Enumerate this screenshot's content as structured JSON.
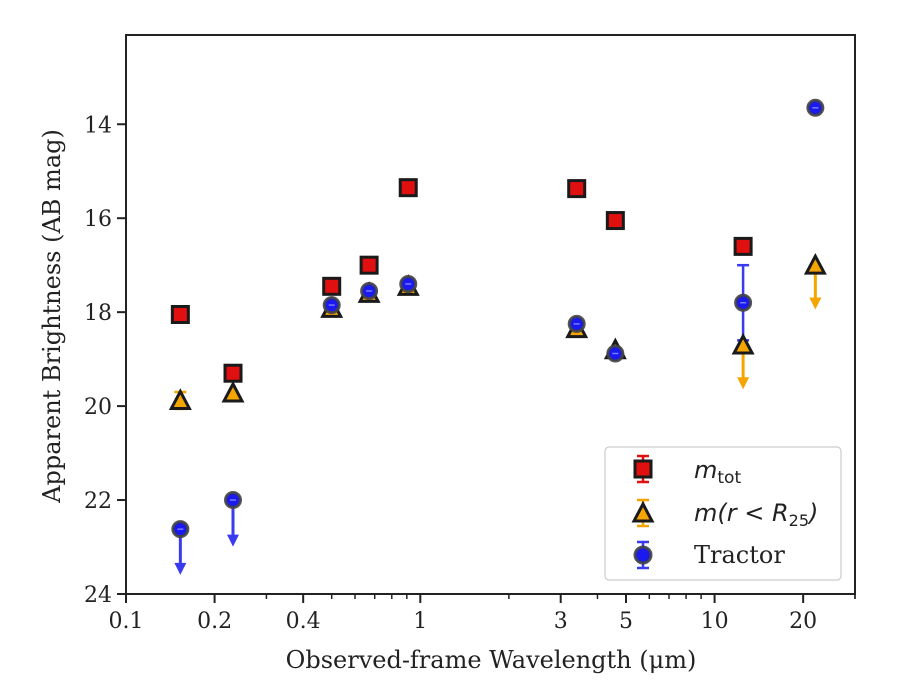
{
  "chart_data": {
    "type": "scatter",
    "xlabel": "Observed-frame Wavelength (μm)",
    "ylabel": "Apparent Brightness (AB mag)",
    "xscale": "log",
    "xlim": [
      0.1,
      30
    ],
    "ylim": [
      24,
      12.1
    ],
    "y_inverted": true,
    "x_ticks": [
      {
        "value": 0.1,
        "label": "0.1"
      },
      {
        "value": 0.2,
        "label": "0.2"
      },
      {
        "value": 0.4,
        "label": "0.4"
      },
      {
        "value": 1,
        "label": "1"
      },
      {
        "value": 3,
        "label": "3"
      },
      {
        "value": 5,
        "label": "5"
      },
      {
        "value": 10,
        "label": "10"
      },
      {
        "value": 20,
        "label": "20"
      }
    ],
    "y_ticks": [
      {
        "value": 14,
        "label": "14"
      },
      {
        "value": 16,
        "label": "16"
      },
      {
        "value": 18,
        "label": "18"
      },
      {
        "value": 20,
        "label": "20"
      },
      {
        "value": 22,
        "label": "22"
      },
      {
        "value": 24,
        "label": "24"
      }
    ],
    "grid": false,
    "legend_position": "lower-right",
    "legend": {
      "mtot_base": "m",
      "mtot_sub": "tot",
      "mr_base": "m",
      "mr_paren_open": "(r < R",
      "mr_sub": "25",
      "mr_paren_close": ")",
      "tractor": "Tractor"
    },
    "series": [
      {
        "key": "mtot",
        "marker": "square",
        "color": "#e01010",
        "errcolor": "#e01010",
        "points": [
          {
            "x": 0.153,
            "y": 18.05
          },
          {
            "x": 0.231,
            "y": 19.3
          },
          {
            "x": 0.5,
            "y": 17.45
          },
          {
            "x": 0.67,
            "y": 17.0
          },
          {
            "x": 0.91,
            "y": 15.35
          },
          {
            "x": 3.4,
            "y": 15.37
          },
          {
            "x": 4.6,
            "y": 16.05
          },
          {
            "x": 12.5,
            "y": 16.6
          }
        ]
      },
      {
        "key": "mr25",
        "marker": "triangle",
        "color": "#f5a500",
        "errcolor": "#f5a500",
        "points": [
          {
            "x": 0.153,
            "y": 19.88,
            "err": 0.18
          },
          {
            "x": 0.231,
            "y": 19.72
          },
          {
            "x": 0.5,
            "y": 17.92
          },
          {
            "x": 0.67,
            "y": 17.6
          },
          {
            "x": 0.91,
            "y": 17.45
          },
          {
            "x": 3.4,
            "y": 18.35
          },
          {
            "x": 4.6,
            "y": 18.8
          },
          {
            "x": 12.5,
            "y": 18.7,
            "upper_limit": true,
            "arrow_to": 19.6
          },
          {
            "x": 22.0,
            "y": 17.0,
            "upper_limit": true,
            "arrow_to": 17.9
          }
        ]
      },
      {
        "key": "tractor",
        "marker": "circle",
        "color": "#1a1aee",
        "errcolor": "#3a3aee",
        "points": [
          {
            "x": 0.153,
            "y": 22.62,
            "upper_limit": true,
            "arrow_to": 23.55
          },
          {
            "x": 0.231,
            "y": 22.0,
            "upper_limit": true,
            "arrow_to": 22.95
          },
          {
            "x": 0.5,
            "y": 17.85
          },
          {
            "x": 0.67,
            "y": 17.55
          },
          {
            "x": 0.91,
            "y": 17.4
          },
          {
            "x": 3.4,
            "y": 18.25
          },
          {
            "x": 4.6,
            "y": 18.88
          },
          {
            "x": 12.5,
            "y": 17.8,
            "err": 0.8
          },
          {
            "x": 22.0,
            "y": 13.65
          }
        ]
      }
    ]
  }
}
